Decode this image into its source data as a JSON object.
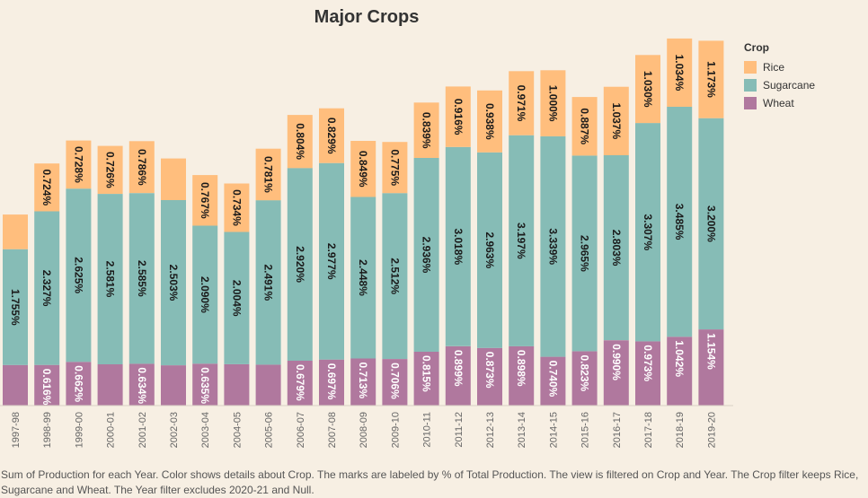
{
  "chart_data": {
    "type": "bar",
    "stacked": true,
    "title": "Major Crops",
    "xlabel": "",
    "ylabel": "",
    "grid": false,
    "legend_position": "top-right",
    "legend_title": "Crop",
    "categories": [
      "1997-98",
      "1998-99",
      "1999-00",
      "2000-01",
      "2001-02",
      "2002-03",
      "2003-04",
      "2004-05",
      "2005-06",
      "2006-07",
      "2007-08",
      "2008-09",
      "2009-10",
      "2010-11",
      "2011-12",
      "2012-13",
      "2013-14",
      "2014-15",
      "2015-16",
      "2016-17",
      "2017-18",
      "2018-19",
      "2019-20"
    ],
    "series": [
      {
        "name": "Wheat",
        "color": "#b0789e",
        "values": [
          0.614,
          0.616,
          0.662,
          0.626,
          0.634,
          0.61,
          0.635,
          0.626,
          0.62,
          0.679,
          0.697,
          0.713,
          0.706,
          0.815,
          0.899,
          0.873,
          0.898,
          0.74,
          0.823,
          0.99,
          0.973,
          1.042,
          1.154
        ],
        "labels": [
          "",
          "0.616%",
          "0.662%",
          "",
          "0.634%",
          "",
          "0.635%",
          "",
          "",
          "0.679%",
          "0.697%",
          "0.713%",
          "0.706%",
          "0.815%",
          "0.899%",
          "0.873%",
          "0.898%",
          "0.740%",
          "0.823%",
          "0.990%",
          "0.973%",
          "1.042%",
          "1.154%"
        ]
      },
      {
        "name": "Sugarcane",
        "color": "#86bcb6",
        "values": [
          1.755,
          2.327,
          2.625,
          2.581,
          2.585,
          2.503,
          2.09,
          2.004,
          2.491,
          2.92,
          2.977,
          2.448,
          2.512,
          2.936,
          3.018,
          2.963,
          3.197,
          3.339,
          2.965,
          2.803,
          3.307,
          3.485,
          3.2
        ],
        "labels": [
          "1.755%",
          "2.327%",
          "2.625%",
          "2.581%",
          "2.585%",
          "2.503%",
          "2.090%",
          "2.004%",
          "2.491%",
          "2.920%",
          "2.977%",
          "2.448%",
          "2.512%",
          "2.936%",
          "3.018%",
          "2.963%",
          "3.197%",
          "3.339%",
          "2.965%",
          "2.803%",
          "3.307%",
          "3.485%",
          "3.200%"
        ]
      },
      {
        "name": "Rice",
        "color": "#ffbe7d",
        "values": [
          0.525,
          0.724,
          0.728,
          0.726,
          0.786,
          0.63,
          0.767,
          0.734,
          0.781,
          0.804,
          0.829,
          0.849,
          0.775,
          0.839,
          0.916,
          0.938,
          0.971,
          1.0,
          0.887,
          1.037,
          1.03,
          1.034,
          1.173
        ],
        "labels": [
          "",
          "0.724%",
          "0.728%",
          "0.726%",
          "0.786%",
          "",
          "0.767%",
          "0.734%",
          "0.781%",
          "0.804%",
          "0.829%",
          "0.849%",
          "0.775%",
          "0.839%",
          "0.916%",
          "0.938%",
          "0.971%",
          "1.000%",
          "0.887%",
          "1.037%",
          "1.030%",
          "1.034%",
          "1.173%"
        ]
      }
    ],
    "ylim": [
      0,
      5.6
    ]
  },
  "caption": "Sum of Production for each Year.  Color shows details about Crop.  The marks are labeled by % of Total Production. The view is filtered on Crop and Year. The Crop filter keeps Rice, Sugarcane and Wheat. The Year filter excludes 2020-21 and Null."
}
